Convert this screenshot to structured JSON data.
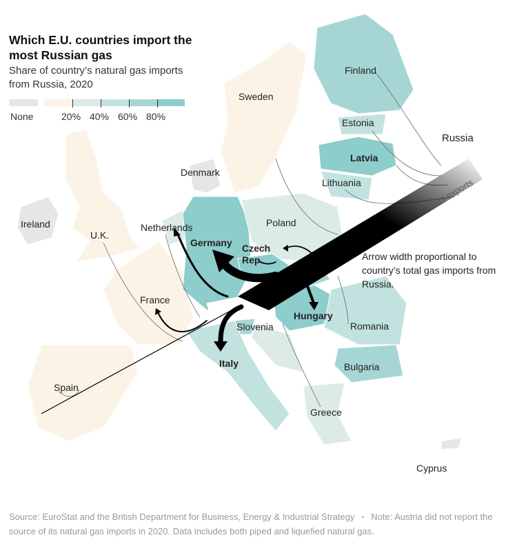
{
  "title": "Which E.U. countries import the most Russian gas",
  "subtitle": "Share of country’s natural gas imports from Russia, 2020",
  "legend": {
    "none_label": "None",
    "ticks": [
      "20%",
      "40%",
      "60%",
      "80%"
    ],
    "colors": {
      "none": "#e6e6e6",
      "0-20": "#fbf4e6",
      "20-40": "#dcebe7",
      "40-60": "#c2e2df",
      "60-80": "#a6d6d4",
      "80-100": "#8dcdcc"
    }
  },
  "countries": {
    "finland": "Finland",
    "sweden": "Sweden",
    "estonia": "Estonia",
    "russia": "Russia",
    "latvia": "Latvia",
    "denmark": "Denmark",
    "lithuania": "Lithuania",
    "ireland": "Ireland",
    "uk": "U.K.",
    "netherlands": "Netherlands",
    "poland": "Poland",
    "germany": "Germany",
    "czech": "Czech Rep.",
    "france": "France",
    "hungary": "Hungary",
    "slovenia": "Slovenia",
    "romania": "Romania",
    "italy": "Italy",
    "bulgaria": "Bulgaria",
    "spain": "Spain",
    "greece": "Greece",
    "cyprus": "Cyprus"
  },
  "annotations": {
    "gas_exports": "Gas exports",
    "arrow_note": "Arrow width proportional to country’s total gas imports from Russia."
  },
  "footer": {
    "source": "Source: EuroStat and the British Department for Business, Energy & Industrial Strategy",
    "separator": "•",
    "note": "Note: Austria did not report the source of its natural gas imports in 2020. Data includes both piped and liquefied natural gas."
  }
}
